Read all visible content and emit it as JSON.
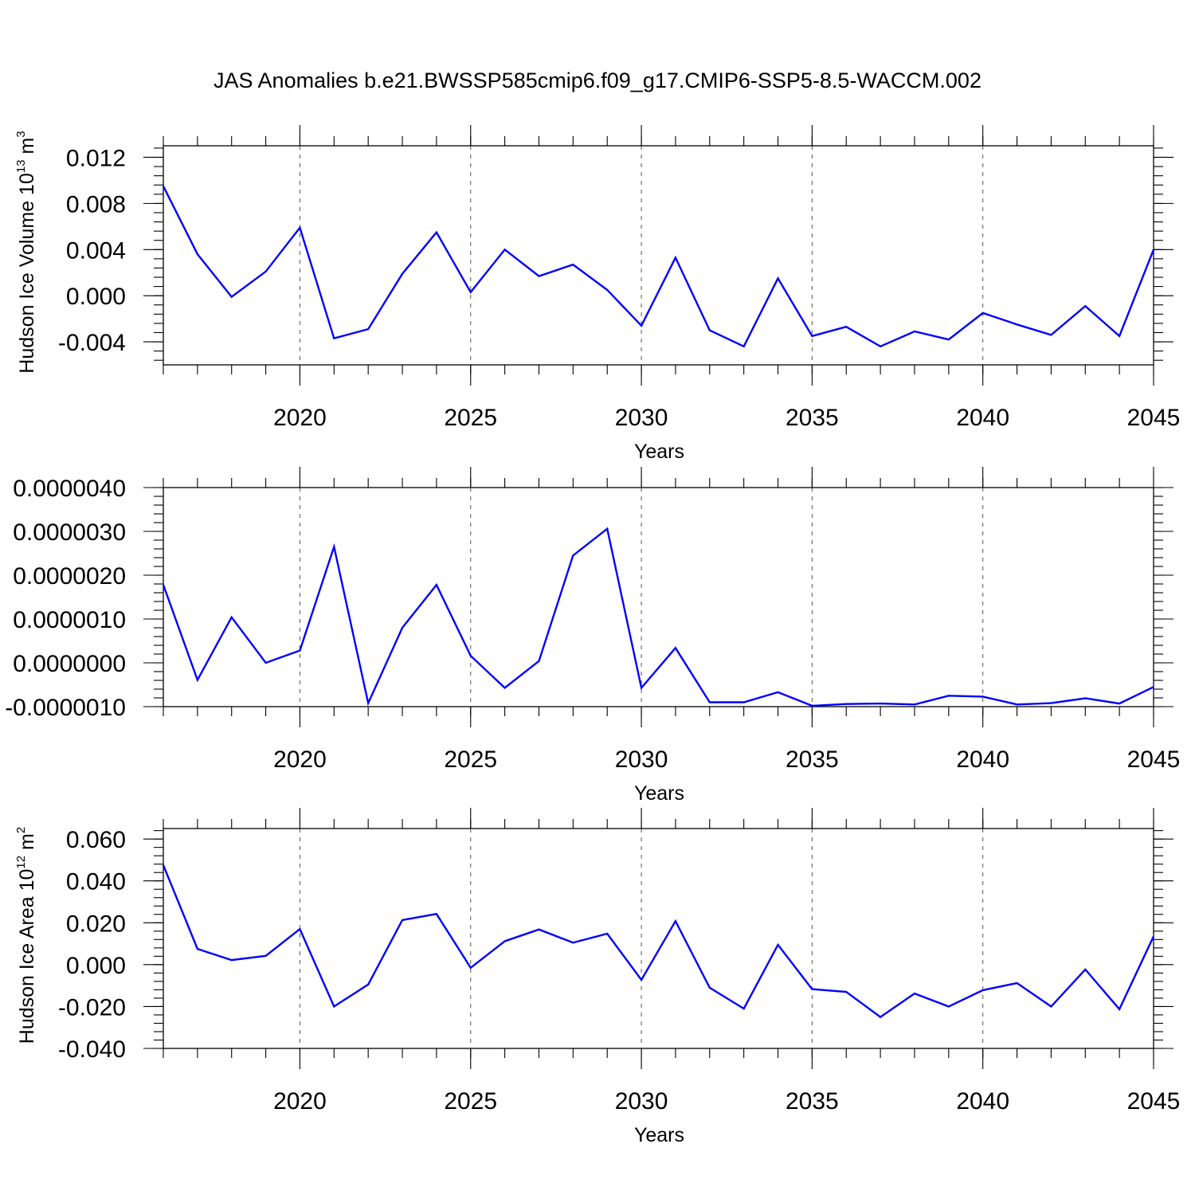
{
  "title": "JAS Anomalies b.e21.BWSSP585cmip6.f09_g17.CMIP6-SSP5-8.5-WACCM.002",
  "chart_data": [
    {
      "type": "line",
      "ylabel_text": "Hudson Ice Volume 10",
      "ylabel_exp": "13",
      "ylabel_unit": " m",
      "ylabel_unit_exp": "3",
      "xlabel": "Years",
      "xlim": [
        2016,
        2045
      ],
      "ylim": [
        -0.006,
        0.013
      ],
      "yticks": [
        -0.004,
        0.0,
        0.004,
        0.008,
        0.012
      ],
      "ytick_labels": [
        "-0.004",
        "0.000",
        "0.004",
        "0.008",
        "0.012"
      ],
      "xticks": [
        2020,
        2025,
        2030,
        2035,
        2040,
        2045
      ],
      "xtick_labels": [
        "2020",
        "2025",
        "2030",
        "2035",
        "2040",
        "2045"
      ],
      "grid": "vertical dashed at major x ticks",
      "color": "#0000ff",
      "x": [
        2016,
        2017,
        2018,
        2019,
        2020,
        2021,
        2022,
        2023,
        2024,
        2025,
        2026,
        2027,
        2028,
        2029,
        2030,
        2031,
        2032,
        2033,
        2034,
        2035,
        2036,
        2037,
        2038,
        2039,
        2040,
        2041,
        2042,
        2043,
        2044,
        2045
      ],
      "values": [
        0.0095,
        0.0036,
        -0.0001,
        0.0021,
        0.0059,
        -0.0037,
        -0.0029,
        0.0019,
        0.0055,
        0.0003,
        0.004,
        0.0017,
        0.0027,
        0.0005,
        -0.0026,
        0.0033,
        -0.003,
        -0.0044,
        0.0015,
        -0.0035,
        -0.0027,
        -0.0044,
        -0.0031,
        -0.0038,
        -0.0015,
        -0.0025,
        -0.0034,
        -0.0009,
        -0.0035,
        0.004
      ]
    },
    {
      "type": "line",
      "ylabel_text": "",
      "xlabel": "Years",
      "xlim": [
        2016,
        2045
      ],
      "ylim": [
        -1e-06,
        4e-06
      ],
      "yticks": [
        -1e-06,
        0.0,
        1e-06,
        2e-06,
        3e-06,
        4e-06
      ],
      "ytick_labels": [
        "-0.0000010",
        "0.0000000",
        "0.0000010",
        "0.0000020",
        "0.0000030",
        "0.0000040"
      ],
      "xticks": [
        2020,
        2025,
        2030,
        2035,
        2040,
        2045
      ],
      "xtick_labels": [
        "2020",
        "2025",
        "2030",
        "2035",
        "2040",
        "2045"
      ],
      "grid": "vertical dashed at major x ticks",
      "color": "#0000ff",
      "x": [
        2016,
        2017,
        2018,
        2019,
        2020,
        2021,
        2022,
        2023,
        2024,
        2025,
        2026,
        2027,
        2028,
        2029,
        2030,
        2031,
        2032,
        2033,
        2034,
        2035,
        2036,
        2037,
        2038,
        2039,
        2040,
        2041,
        2042,
        2043,
        2044,
        2045
      ],
      "values": [
        1.78e-06,
        -3.9e-07,
        1.04e-06,
        0.0,
        2.8e-07,
        2.65e-06,
        -9.2e-07,
        8e-07,
        1.78e-06,
        1.6e-07,
        -5.7e-07,
        4e-08,
        2.45e-06,
        3.06e-06,
        -5.7e-07,
        3.4e-07,
        -9e-07,
        -9e-07,
        -6.7e-07,
        -9.8e-07,
        -9.4e-07,
        -9.3e-07,
        -9.5e-07,
        -7.5e-07,
        -7.7e-07,
        -9.5e-07,
        -9.2e-07,
        -8.1e-07,
        -9.3e-07,
        -5.5e-07
      ]
    },
    {
      "type": "line",
      "ylabel_text": "Hudson Ice Area 10",
      "ylabel_exp": "12",
      "ylabel_unit": " m",
      "ylabel_unit_exp": "2",
      "xlabel": "Years",
      "xlim": [
        2016,
        2045
      ],
      "ylim": [
        -0.04,
        0.065
      ],
      "yticks": [
        -0.04,
        -0.02,
        0.0,
        0.02,
        0.04,
        0.06
      ],
      "ytick_labels": [
        "-0.040",
        "-0.020",
        "0.000",
        "0.020",
        "0.040",
        "0.060"
      ],
      "xticks": [
        2020,
        2025,
        2030,
        2035,
        2040,
        2045
      ],
      "xtick_labels": [
        "2020",
        "2025",
        "2030",
        "2035",
        "2040",
        "2045"
      ],
      "grid": "vertical dashed at major x ticks",
      "color": "#0000ff",
      "x": [
        2016,
        2017,
        2018,
        2019,
        2020,
        2021,
        2022,
        2023,
        2024,
        2025,
        2026,
        2027,
        2028,
        2029,
        2030,
        2031,
        2032,
        2033,
        2034,
        2035,
        2036,
        2037,
        2038,
        2039,
        2040,
        2041,
        2042,
        2043,
        2044,
        2045
      ],
      "values": [
        0.0475,
        0.0075,
        0.0022,
        0.0042,
        0.017,
        -0.02,
        -0.0095,
        0.0213,
        0.0242,
        -0.0015,
        0.0112,
        0.0168,
        0.0105,
        0.0148,
        -0.0073,
        0.0208,
        -0.011,
        -0.021,
        0.0095,
        -0.0117,
        -0.013,
        -0.025,
        -0.0138,
        -0.02,
        -0.0122,
        -0.0088,
        -0.02,
        -0.0023,
        -0.0213,
        0.0135
      ]
    }
  ]
}
